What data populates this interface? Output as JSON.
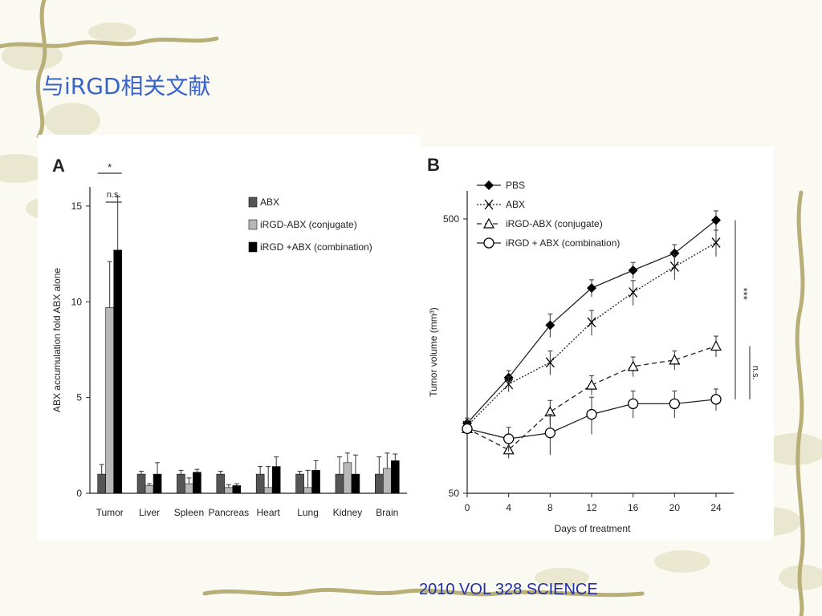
{
  "slide": {
    "title": "与iRGD相关文献",
    "citation": "2010 VOL 328 SCIENCE"
  },
  "colors": {
    "title": "#3a63c8",
    "citation": "#1f2fa8",
    "vine": "#b9b07a",
    "leaf": "#d8d6b0"
  },
  "chart_data": [
    {
      "panel_label": "A",
      "type": "bar",
      "ylabel": "ABX accumulation fold ABX alone",
      "ylim": [
        0,
        16
      ],
      "yticks": [
        "0",
        "5",
        "10",
        "15"
      ],
      "categories": [
        "Tumor",
        "Liver",
        "Spleen",
        "Pancreas",
        "Heart",
        "Lung",
        "Kidney",
        "Brain"
      ],
      "series": [
        {
          "name": "ABX",
          "color": "#555555",
          "values": [
            1.0,
            1.0,
            1.0,
            1.0,
            1.0,
            1.0,
            1.0,
            1.0
          ],
          "errors": [
            0.5,
            0.15,
            0.2,
            0.15,
            0.4,
            0.15,
            0.9,
            0.9
          ]
        },
        {
          "name": "iRGD-ABX (conjugate)",
          "color": "#b8b8b8",
          "values": [
            9.7,
            0.4,
            0.5,
            0.3,
            0.3,
            0.3,
            1.6,
            1.3
          ],
          "errors": [
            2.4,
            0.1,
            0.3,
            0.15,
            1.1,
            0.9,
            0.5,
            0.8
          ]
        },
        {
          "name": "iRGD +ABX (combination)",
          "color": "#000000",
          "values": [
            12.7,
            1.0,
            1.1,
            0.4,
            1.4,
            1.2,
            1.0,
            1.7
          ],
          "errors": [
            2.8,
            0.6,
            0.15,
            0.1,
            0.5,
            0.5,
            1.0,
            0.35
          ]
        }
      ],
      "annotations": [
        "*",
        "n.s."
      ],
      "legend": "top-right"
    },
    {
      "panel_label": "B",
      "type": "line",
      "xlabel": "Days of treatment",
      "ylabel": "Tumor volume (mm³)",
      "yscale": "log",
      "ylim": [
        50,
        700
      ],
      "yticks": [
        "50",
        "500"
      ],
      "x": [
        0,
        4,
        8,
        12,
        16,
        20,
        24
      ],
      "series": [
        {
          "name": "PBS",
          "marker": "diamond-filled",
          "line": "solid",
          "values": [
            90,
            132,
            205,
            280,
            325,
            375,
            495
          ],
          "errors": [
            4,
            8,
            20,
            20,
            22,
            28,
            40
          ]
        },
        {
          "name": "ABX",
          "marker": "x",
          "line": "dotted",
          "values": [
            88,
            125,
            150,
            210,
            270,
            335,
            410
          ],
          "errors": [
            4,
            8,
            15,
            22,
            28,
            35,
            45
          ]
        },
        {
          "name": "iRGD-ABX (conjugate)",
          "marker": "triangle-open",
          "line": "dashed",
          "values": [
            86,
            72,
            99,
            124,
            145,
            153,
            172
          ],
          "errors": [
            4,
            5,
            10,
            10,
            12,
            12,
            15
          ]
        },
        {
          "name": "iRGD + ABX (combination)",
          "marker": "circle-open",
          "line": "solid",
          "values": [
            86,
            79,
            83,
            97,
            106,
            106,
            110
          ],
          "errors": [
            4,
            8,
            14,
            15,
            12,
            12,
            10
          ]
        }
      ],
      "annotations": [
        "***",
        "n.s."
      ],
      "legend": "top-left"
    }
  ]
}
